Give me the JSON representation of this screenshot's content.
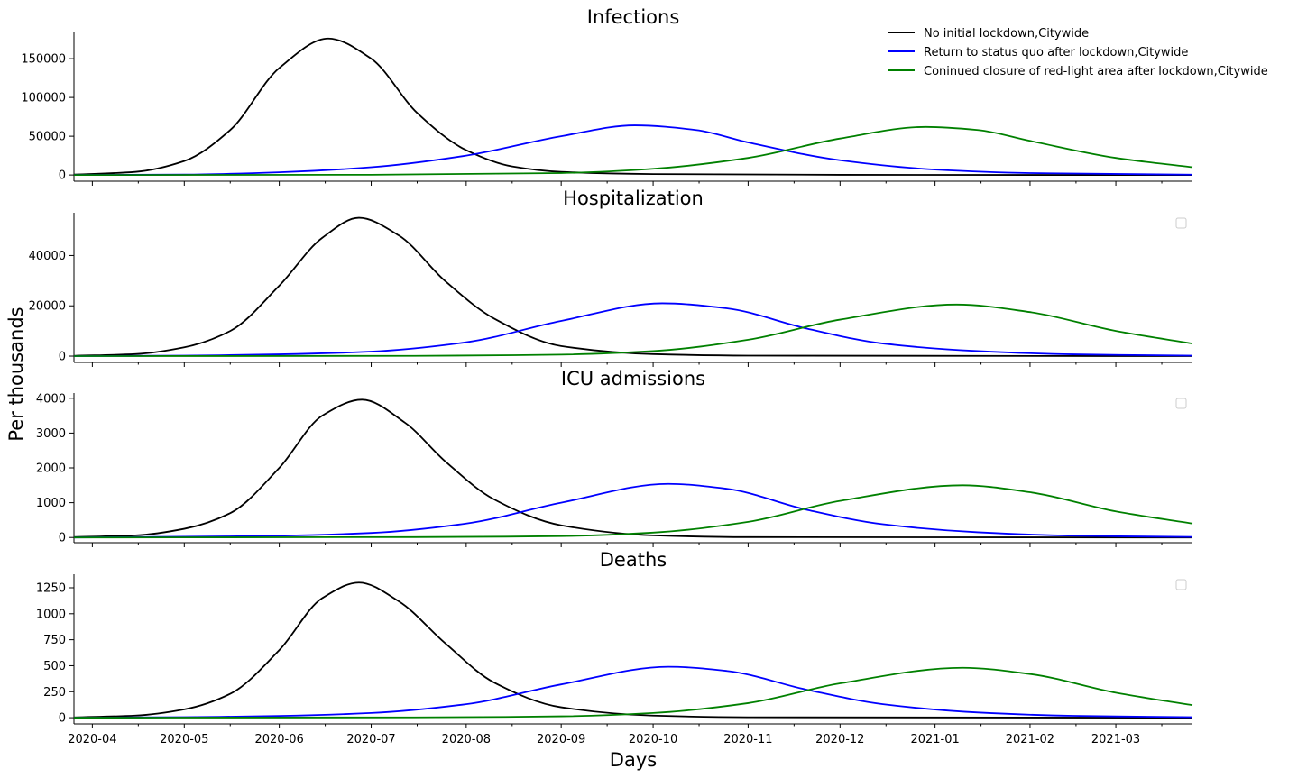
{
  "chart_data": {
    "type": "line",
    "xlabel": "Days",
    "ylabel": "Per thousands",
    "x_start": "2020-03-26",
    "x_end": "2021-03-26",
    "x_ticks": [
      "2020-04",
      "2020-05",
      "2020-06",
      "2020-07",
      "2020-08",
      "2020-09",
      "2020-10",
      "2020-11",
      "2020-12",
      "2021-01",
      "2021-02",
      "2021-03"
    ],
    "grid": false,
    "legend": {
      "placement": "top-right",
      "entries": [
        {
          "name": "No initial lockdown,Citywide",
          "color": "#000000"
        },
        {
          "name": "Return to status quo after lockdown,Citywide",
          "color": "#0000ff"
        },
        {
          "name": "Coninued closure of red-light area after lockdown,Citywide",
          "color": "#008000"
        }
      ]
    },
    "panels": [
      {
        "title": "Infections",
        "ylim": [
          -8000,
          185000
        ],
        "yticks": [
          0,
          50000,
          100000,
          150000
        ],
        "series": [
          {
            "name": "No initial lockdown,Citywide",
            "color": "#000000",
            "points": [
              [
                "2020-03-26",
                500
              ],
              [
                "2020-04-15",
                4000
              ],
              [
                "2020-05-01",
                18000
              ],
              [
                "2020-05-16",
                58000
              ],
              [
                "2020-06-01",
                138000
              ],
              [
                "2020-06-17",
                176000
              ],
              [
                "2020-07-01",
                150000
              ],
              [
                "2020-07-16",
                80000
              ],
              [
                "2020-08-01",
                32000
              ],
              [
                "2020-08-16",
                11000
              ],
              [
                "2020-09-01",
                4000
              ],
              [
                "2020-10-01",
                1200
              ],
              [
                "2020-12-01",
                200
              ],
              [
                "2021-03-26",
                0
              ]
            ]
          },
          {
            "name": "Return to status quo after lockdown,Citywide",
            "color": "#0000ff",
            "points": [
              [
                "2020-03-26",
                0
              ],
              [
                "2020-05-01",
                500
              ],
              [
                "2020-06-01",
                3500
              ],
              [
                "2020-07-01",
                10000
              ],
              [
                "2020-08-01",
                25000
              ],
              [
                "2020-09-01",
                50000
              ],
              [
                "2020-09-25",
                64000
              ],
              [
                "2020-10-15",
                58000
              ],
              [
                "2020-11-01",
                42000
              ],
              [
                "2020-12-01",
                19000
              ],
              [
                "2021-01-01",
                7000
              ],
              [
                "2021-02-01",
                2500
              ],
              [
                "2021-03-26",
                400
              ]
            ]
          },
          {
            "name": "Coninued closure of red-light area after lockdown,Citywide",
            "color": "#008000",
            "points": [
              [
                "2020-03-26",
                0
              ],
              [
                "2020-07-01",
                300
              ],
              [
                "2020-09-01",
                2500
              ],
              [
                "2020-10-01",
                8000
              ],
              [
                "2020-11-01",
                22000
              ],
              [
                "2020-12-01",
                47000
              ],
              [
                "2020-12-29",
                62000
              ],
              [
                "2021-01-15",
                58000
              ],
              [
                "2021-02-01",
                44000
              ],
              [
                "2021-03-01",
                22000
              ],
              [
                "2021-03-26",
                10000
              ]
            ]
          }
        ]
      },
      {
        "title": "Hospitalization",
        "ylim": [
          -2500,
          57000
        ],
        "yticks": [
          0,
          20000,
          40000
        ],
        "series": [
          {
            "name": "No initial lockdown,Citywide",
            "color": "#000000",
            "points": [
              [
                "2020-03-26",
                100
              ],
              [
                "2020-04-15",
                800
              ],
              [
                "2020-05-01",
                3500
              ],
              [
                "2020-05-16",
                10000
              ],
              [
                "2020-06-01",
                28000
              ],
              [
                "2020-06-15",
                47000
              ],
              [
                "2020-06-27",
                55000
              ],
              [
                "2020-07-10",
                48000
              ],
              [
                "2020-07-25",
                30000
              ],
              [
                "2020-08-10",
                15000
              ],
              [
                "2020-09-01",
                4000
              ],
              [
                "2020-10-01",
                800
              ],
              [
                "2020-11-01",
                200
              ],
              [
                "2021-03-26",
                0
              ]
            ]
          },
          {
            "name": "Return to status quo after lockdown,Citywide",
            "color": "#0000ff",
            "points": [
              [
                "2020-03-26",
                0
              ],
              [
                "2020-05-01",
                200
              ],
              [
                "2020-06-01",
                700
              ],
              [
                "2020-07-01",
                1800
              ],
              [
                "2020-08-01",
                5500
              ],
              [
                "2020-09-01",
                14000
              ],
              [
                "2020-10-04",
                21000
              ],
              [
                "2020-10-25",
                19000
              ],
              [
                "2020-11-20",
                11000
              ],
              [
                "2020-12-15",
                5000
              ],
              [
                "2021-01-15",
                2000
              ],
              [
                "2021-02-15",
                700
              ],
              [
                "2021-03-26",
                200
              ]
            ]
          },
          {
            "name": "Coninued closure of red-light area after lockdown,Citywide",
            "color": "#008000",
            "points": [
              [
                "2020-03-26",
                0
              ],
              [
                "2020-07-15",
                100
              ],
              [
                "2020-09-01",
                600
              ],
              [
                "2020-10-01",
                2000
              ],
              [
                "2020-11-01",
                6500
              ],
              [
                "2020-12-01",
                14500
              ],
              [
                "2021-01-08",
                20500
              ],
              [
                "2021-02-01",
                17500
              ],
              [
                "2021-03-01",
                10000
              ],
              [
                "2021-03-26",
                5000
              ]
            ]
          }
        ]
      },
      {
        "title": "ICU admissions",
        "ylim": [
          -150,
          4150
        ],
        "yticks": [
          0,
          1000,
          2000,
          3000,
          4000
        ],
        "series": [
          {
            "name": "No initial lockdown,Citywide",
            "color": "#000000",
            "points": [
              [
                "2020-03-26",
                10
              ],
              [
                "2020-04-15",
                60
              ],
              [
                "2020-05-01",
                250
              ],
              [
                "2020-05-16",
                700
              ],
              [
                "2020-06-01",
                2000
              ],
              [
                "2020-06-15",
                3500
              ],
              [
                "2020-06-28",
                3960
              ],
              [
                "2020-07-12",
                3300
              ],
              [
                "2020-07-25",
                2200
              ],
              [
                "2020-08-10",
                1100
              ],
              [
                "2020-09-01",
                350
              ],
              [
                "2020-10-01",
                60
              ],
              [
                "2020-11-01",
                10
              ],
              [
                "2021-03-26",
                0
              ]
            ]
          },
          {
            "name": "Return to status quo after lockdown,Citywide",
            "color": "#0000ff",
            "points": [
              [
                "2020-03-26",
                0
              ],
              [
                "2020-05-01",
                20
              ],
              [
                "2020-06-01",
                50
              ],
              [
                "2020-07-01",
                130
              ],
              [
                "2020-08-01",
                400
              ],
              [
                "2020-09-01",
                1000
              ],
              [
                "2020-10-06",
                1540
              ],
              [
                "2020-10-25",
                1400
              ],
              [
                "2020-11-20",
                800
              ],
              [
                "2020-12-15",
                380
              ],
              [
                "2021-01-15",
                150
              ],
              [
                "2021-02-15",
                50
              ],
              [
                "2021-03-26",
                15
              ]
            ]
          },
          {
            "name": "Coninued closure of red-light area after lockdown,Citywide",
            "color": "#008000",
            "points": [
              [
                "2020-03-26",
                0
              ],
              [
                "2020-07-15",
                10
              ],
              [
                "2020-09-01",
                40
              ],
              [
                "2020-10-01",
                140
              ],
              [
                "2020-11-01",
                450
              ],
              [
                "2020-12-01",
                1050
              ],
              [
                "2021-01-10",
                1500
              ],
              [
                "2021-02-01",
                1300
              ],
              [
                "2021-03-01",
                750
              ],
              [
                "2021-03-26",
                400
              ]
            ]
          }
        ]
      },
      {
        "title": "Deaths",
        "ylim": [
          -60,
          1380
        ],
        "yticks": [
          0,
          250,
          500,
          750,
          1000,
          1250
        ],
        "series": [
          {
            "name": "No initial lockdown,Citywide",
            "color": "#000000",
            "points": [
              [
                "2020-03-26",
                3
              ],
              [
                "2020-04-15",
                20
              ],
              [
                "2020-05-01",
                80
              ],
              [
                "2020-05-16",
                230
              ],
              [
                "2020-06-01",
                650
              ],
              [
                "2020-06-15",
                1150
              ],
              [
                "2020-06-27",
                1300
              ],
              [
                "2020-07-10",
                1120
              ],
              [
                "2020-07-25",
                720
              ],
              [
                "2020-08-10",
                340
              ],
              [
                "2020-09-01",
                100
              ],
              [
                "2020-10-01",
                20
              ],
              [
                "2020-11-01",
                4
              ],
              [
                "2021-03-26",
                0
              ]
            ]
          },
          {
            "name": "Return to status quo after lockdown,Citywide",
            "color": "#0000ff",
            "points": [
              [
                "2020-03-26",
                0
              ],
              [
                "2020-05-01",
                5
              ],
              [
                "2020-06-01",
                17
              ],
              [
                "2020-07-01",
                45
              ],
              [
                "2020-08-01",
                130
              ],
              [
                "2020-09-01",
                320
              ],
              [
                "2020-10-06",
                490
              ],
              [
                "2020-10-25",
                450
              ],
              [
                "2020-11-20",
                270
              ],
              [
                "2020-12-15",
                130
              ],
              [
                "2021-01-15",
                50
              ],
              [
                "2021-02-15",
                18
              ],
              [
                "2021-03-26",
                5
              ]
            ]
          },
          {
            "name": "Coninued closure of red-light area after lockdown,Citywide",
            "color": "#008000",
            "points": [
              [
                "2020-03-26",
                0
              ],
              [
                "2020-07-15",
                3
              ],
              [
                "2020-09-01",
                13
              ],
              [
                "2020-10-01",
                45
              ],
              [
                "2020-11-01",
                140
              ],
              [
                "2020-12-01",
                330
              ],
              [
                "2021-01-10",
                480
              ],
              [
                "2021-02-01",
                420
              ],
              [
                "2021-03-01",
                240
              ],
              [
                "2021-03-26",
                120
              ]
            ]
          }
        ]
      }
    ]
  }
}
